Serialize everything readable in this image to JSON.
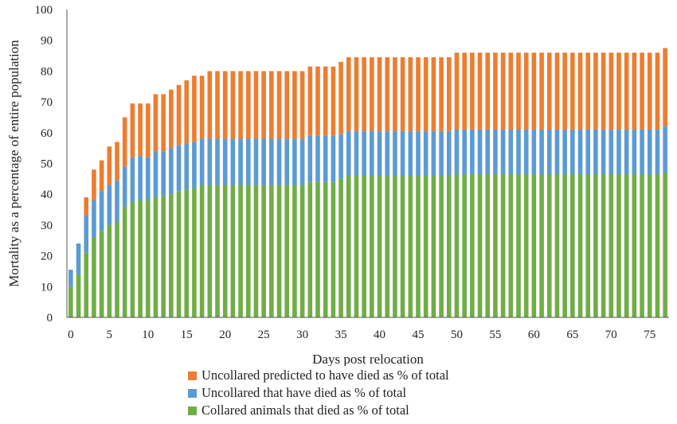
{
  "chart_data": {
    "type": "bar",
    "stacked": true,
    "title": "",
    "xlabel": "Days post relocation",
    "ylabel": "Mortality as a percentage of entire population",
    "ylim": [
      0,
      100
    ],
    "yticks": [
      0,
      10,
      20,
      30,
      40,
      50,
      60,
      70,
      80,
      90,
      100
    ],
    "xticks": [
      0,
      5,
      10,
      15,
      20,
      25,
      30,
      35,
      40,
      45,
      50,
      55,
      60,
      65,
      70,
      75
    ],
    "xlim": [
      0,
      77
    ],
    "grid": false,
    "legend_position": "bottom",
    "x": [
      0,
      1,
      2,
      3,
      4,
      5,
      6,
      7,
      8,
      9,
      10,
      11,
      12,
      13,
      14,
      15,
      16,
      17,
      18,
      19,
      20,
      21,
      22,
      23,
      24,
      25,
      26,
      27,
      28,
      29,
      30,
      31,
      32,
      33,
      34,
      35,
      36,
      37,
      38,
      39,
      40,
      41,
      42,
      43,
      44,
      45,
      46,
      47,
      48,
      49,
      50,
      51,
      52,
      53,
      54,
      55,
      56,
      57,
      58,
      59,
      60,
      61,
      62,
      63,
      64,
      65,
      66,
      67,
      68,
      69,
      70,
      71,
      72,
      73,
      74,
      75,
      76,
      77
    ],
    "series": [
      {
        "name": "Collared animals that died as % of total",
        "color": "#70ad47",
        "values": [
          10,
          14,
          21,
          26,
          28,
          30,
          31,
          36,
          37.5,
          38,
          38,
          39,
          39.5,
          40,
          41,
          41.5,
          42,
          43,
          43,
          43,
          43,
          43,
          43,
          43,
          43,
          43,
          43,
          43,
          43,
          43,
          43,
          44,
          44,
          44,
          44,
          45,
          46,
          46,
          46,
          46,
          46,
          46,
          46,
          46,
          46,
          46,
          46,
          46,
          46,
          46,
          46.5,
          46.5,
          46.5,
          46.5,
          46.5,
          46.5,
          46.5,
          46.5,
          46.5,
          46.5,
          46.5,
          46.5,
          46.5,
          46.5,
          46.5,
          46.5,
          46.5,
          46.5,
          46.5,
          46.5,
          46.5,
          46.5,
          46.5,
          46.5,
          46.5,
          46.5,
          46.5,
          47
        ]
      },
      {
        "name": "Uncollared that have died as % of total",
        "color": "#5b9bd5",
        "values": [
          5.5,
          10,
          12,
          12,
          13,
          13,
          13.5,
          13,
          14.5,
          14.5,
          14,
          15,
          14.5,
          15,
          15,
          15,
          15,
          15,
          15,
          15,
          15,
          15,
          15,
          15,
          15,
          15,
          15,
          15,
          15,
          15,
          15,
          15,
          15,
          15,
          15,
          14.5,
          14.5,
          14.5,
          14.5,
          14.5,
          14.5,
          14.5,
          14.5,
          14.5,
          14.5,
          14.5,
          14.5,
          14.5,
          14.5,
          14.5,
          14.5,
          14.5,
          14.5,
          14.5,
          14.5,
          14.5,
          14.5,
          14.5,
          14.5,
          14.5,
          14.5,
          14.5,
          14.5,
          14.5,
          14.5,
          14.5,
          14.5,
          14.5,
          14.5,
          14.5,
          14.5,
          14.5,
          14.5,
          14.5,
          14.5,
          14.5,
          14.5,
          15
        ]
      },
      {
        "name": "Uncollared predicted to have died as % of total",
        "color": "#ed7d31",
        "values": [
          0,
          0,
          6,
          10,
          10,
          12.5,
          12.5,
          16,
          17.5,
          17,
          17.5,
          18.5,
          18.5,
          19,
          19.5,
          20.5,
          21.5,
          20.5,
          22,
          22,
          22,
          22,
          22,
          22,
          22,
          22,
          22,
          22,
          22,
          22,
          22,
          22.5,
          22.5,
          22.5,
          22.5,
          23.5,
          24,
          24,
          24,
          24,
          24,
          24,
          24,
          24,
          24,
          24,
          24,
          24,
          24,
          24,
          25,
          25,
          25,
          25,
          25,
          25,
          25,
          25,
          25,
          25,
          25,
          25,
          25,
          25,
          25,
          25,
          25,
          25,
          25,
          25,
          25,
          25,
          25,
          25,
          25,
          25,
          25,
          25.5
        ]
      }
    ]
  }
}
